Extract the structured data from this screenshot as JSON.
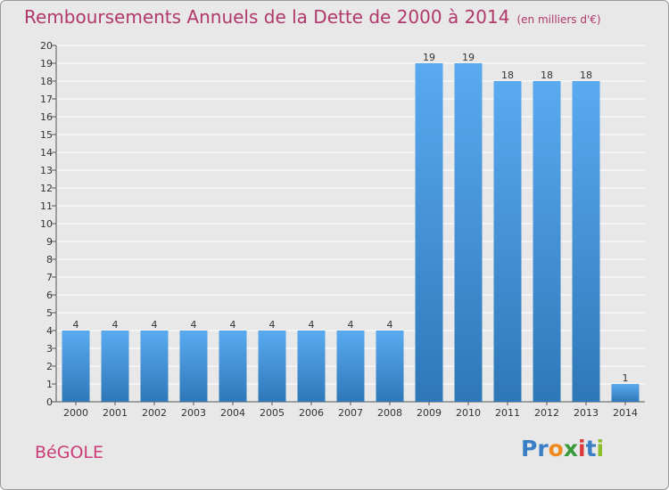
{
  "chart_data": {
    "type": "bar",
    "title": "Remboursements Annuels de la Dette de 2000 à 2014",
    "subtitle": "(en milliers d'€)",
    "categories": [
      "2000",
      "2001",
      "2002",
      "2003",
      "2004",
      "2005",
      "2006",
      "2007",
      "2008",
      "2009",
      "2010",
      "2011",
      "2012",
      "2013",
      "2014"
    ],
    "values": [
      4,
      4,
      4,
      4,
      4,
      4,
      4,
      4,
      4,
      19,
      19,
      18,
      18,
      18,
      1
    ],
    "ylim": [
      0,
      20
    ],
    "yticks": [
      0,
      1,
      2,
      3,
      4,
      5,
      6,
      7,
      8,
      9,
      10,
      11,
      12,
      13,
      14,
      15,
      16,
      17,
      18,
      19,
      20
    ],
    "xlabel": "",
    "ylabel": "",
    "grid": true,
    "bar_color": "#4e9fdf"
  },
  "footer": {
    "city": "BéGOLE",
    "logo": [
      "P",
      "r",
      "o",
      "x",
      "i",
      "t",
      "i"
    ]
  },
  "colors": {
    "title": "#b0386a",
    "city": "#cc3c77",
    "logo": [
      "#3a7fc5",
      "#3a7fc5",
      "#f08a1e",
      "#3a9a3a",
      "#d93b3b",
      "#3a7fc5",
      "#8bbd2a"
    ]
  }
}
